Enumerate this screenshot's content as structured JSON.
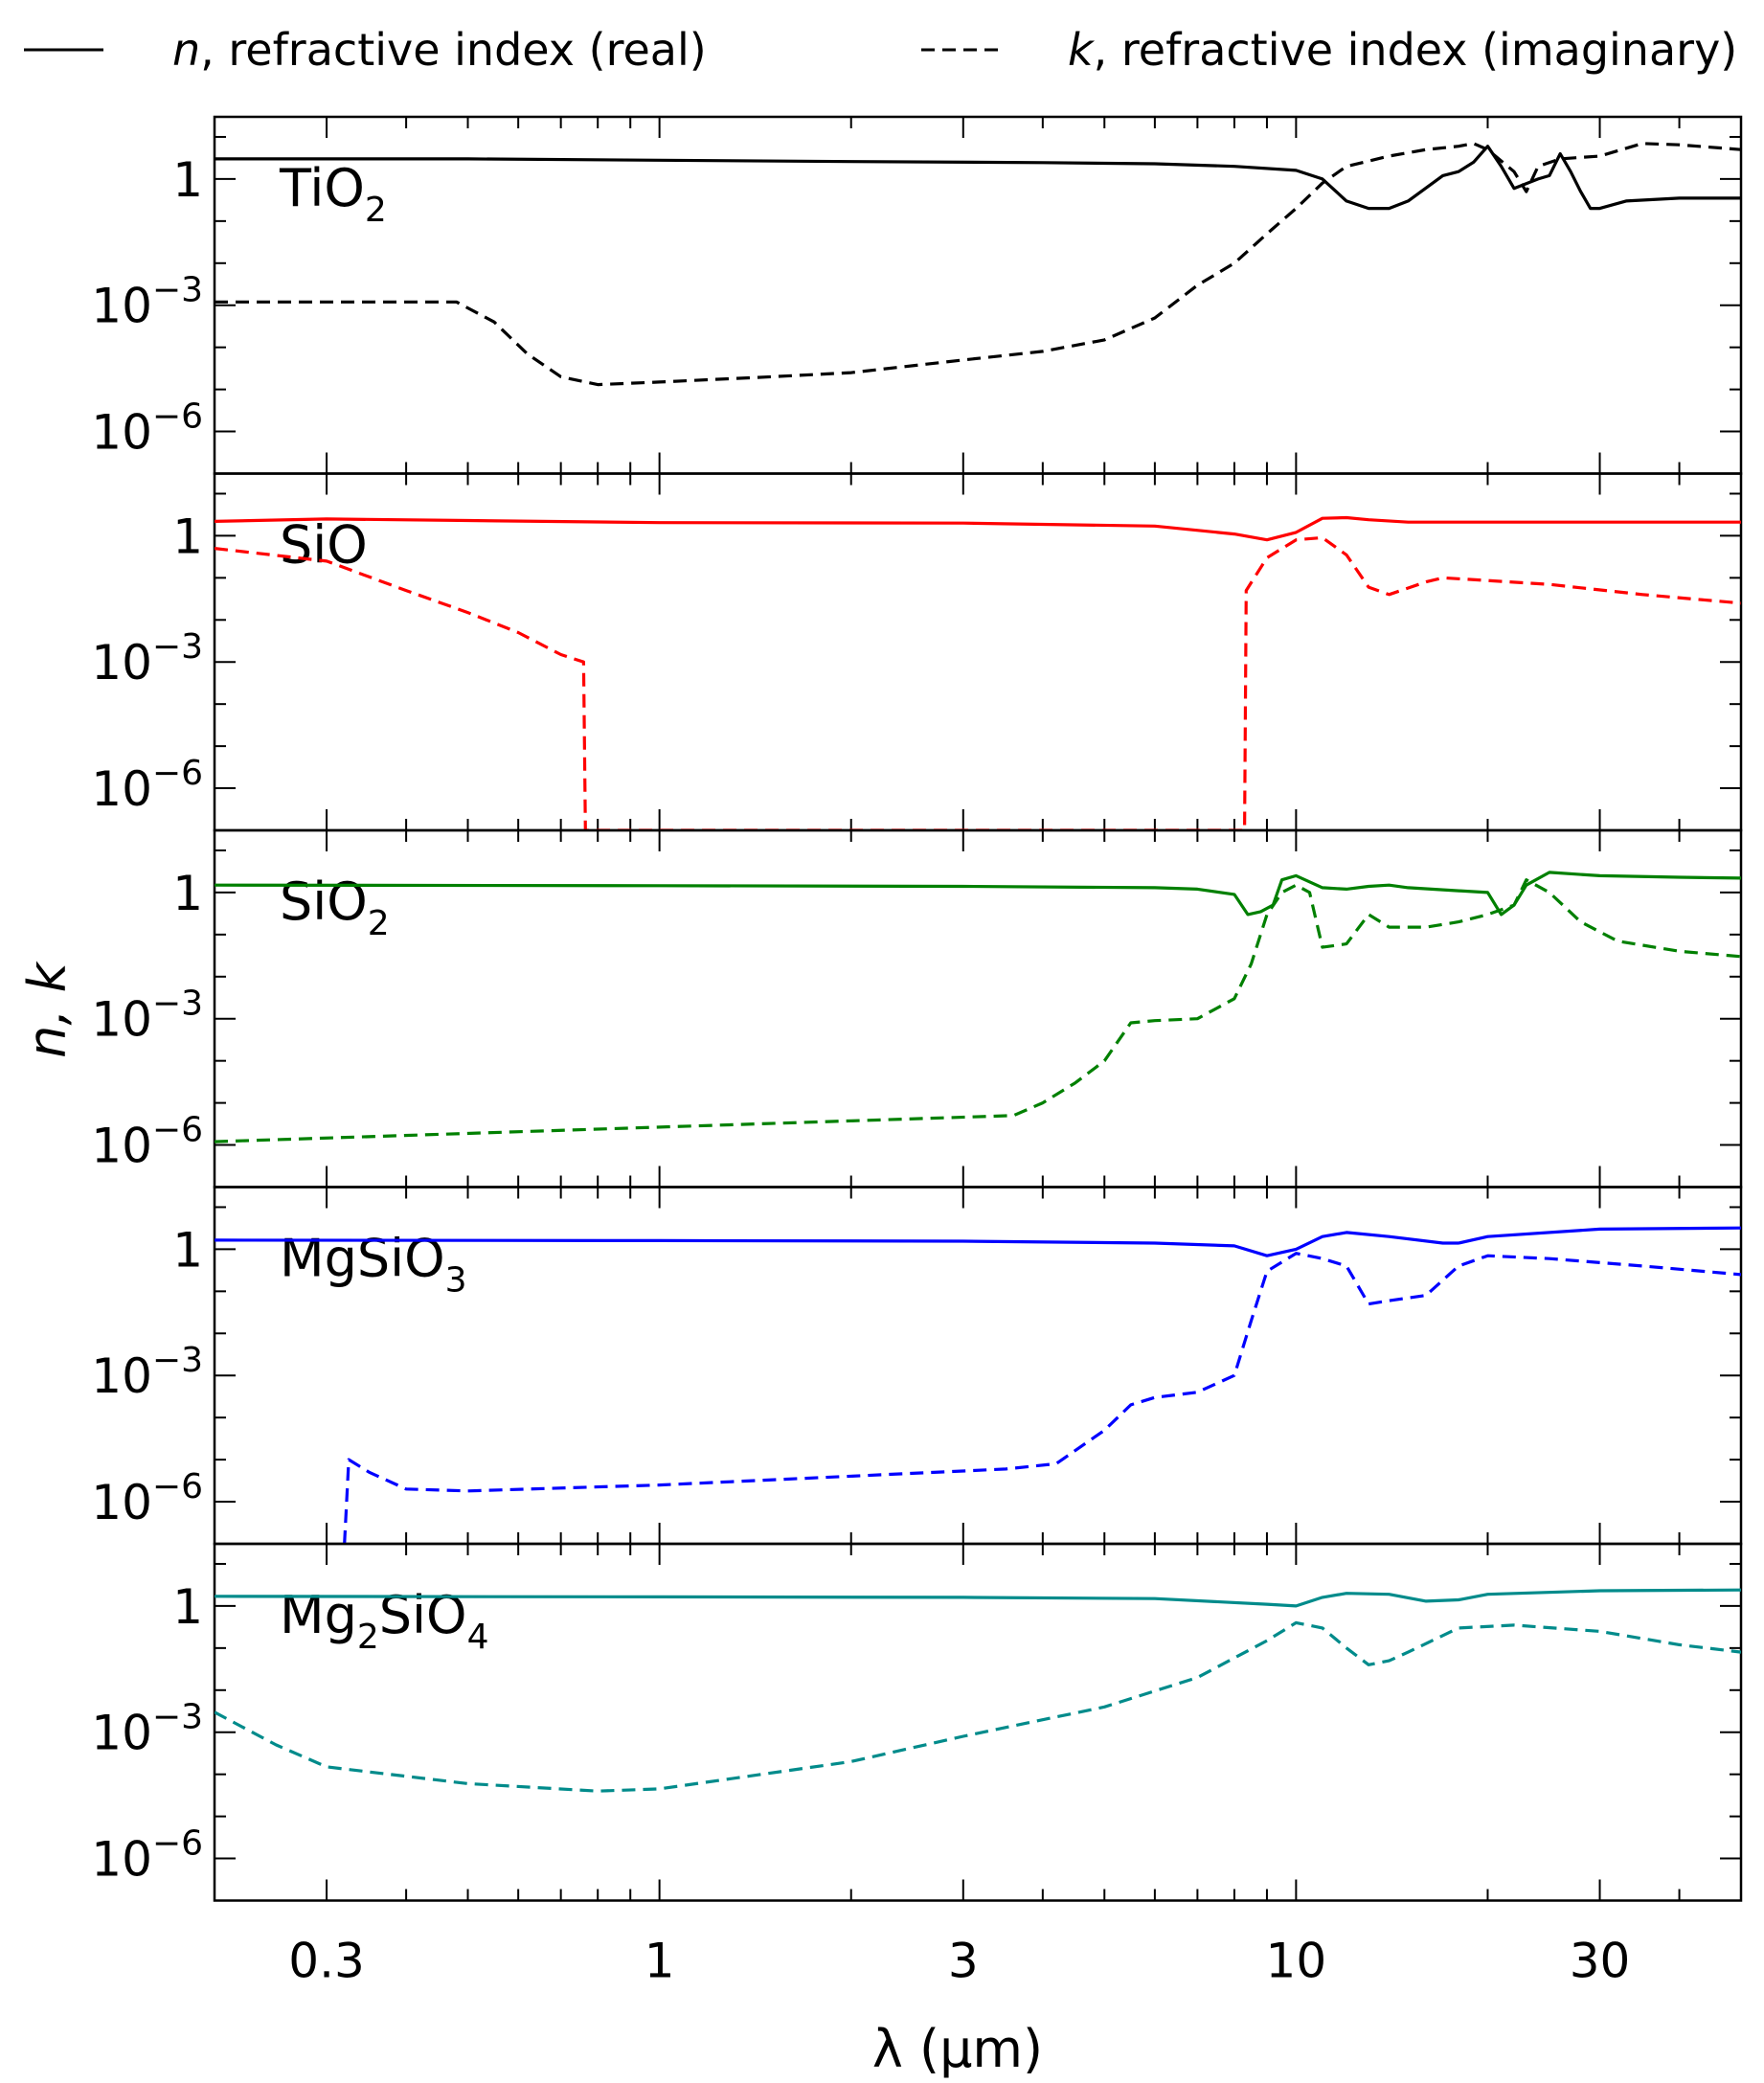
{
  "chart_data": {
    "type": "line",
    "layout": "stacked panels sharing x axis",
    "x_axis": {
      "label": "λ (μm)",
      "scale": "log",
      "range": [
        0.2,
        50
      ],
      "ticks": [
        0.3,
        1,
        3,
        10,
        30
      ],
      "tick_labels": [
        "0.3",
        "1",
        "3",
        "10",
        "30"
      ]
    },
    "y_axis": {
      "label": "n, k",
      "scale": "log",
      "range": [
        1e-07,
        30
      ],
      "ticks": [
        1e-06,
        0.001,
        1
      ],
      "tick_labels_sup": [
        [
          "10",
          "−6"
        ],
        [
          "10",
          "−3"
        ],
        [
          "1",
          ""
        ]
      ]
    },
    "legend": {
      "placement": "top",
      "entries": [
        {
          "key": "n",
          "style": "solid",
          "text_italic": "n",
          "text_rest": ", refractive index (real)"
        },
        {
          "key": "k",
          "style": "dashed",
          "text_italic": "k",
          "text_rest": ", refractive index (imaginary)"
        }
      ]
    },
    "panels": [
      {
        "material": {
          "base": "TiO",
          "subscript": "2"
        },
        "color": "#000000",
        "n": [
          [
            0.2,
            3.0
          ],
          [
            0.5,
            3.0
          ],
          [
            1,
            2.8
          ],
          [
            2,
            2.6
          ],
          [
            4,
            2.45
          ],
          [
            6,
            2.3
          ],
          [
            8,
            2.0
          ],
          [
            10,
            1.6
          ],
          [
            11,
            1.0
          ],
          [
            12,
            0.3
          ],
          [
            13,
            0.2
          ],
          [
            14,
            0.2
          ],
          [
            15,
            0.3
          ],
          [
            17,
            1.2
          ],
          [
            18,
            1.5
          ],
          [
            19,
            2.5
          ],
          [
            20,
            6.0
          ],
          [
            21,
            2.0
          ],
          [
            22,
            0.6
          ],
          [
            24,
            1.0
          ],
          [
            25,
            1.2
          ],
          [
            26,
            4.0
          ],
          [
            27,
            1.5
          ],
          [
            28,
            0.5
          ],
          [
            29,
            0.2
          ],
          [
            30,
            0.2
          ],
          [
            33,
            0.3
          ],
          [
            40,
            0.35
          ],
          [
            50,
            0.35
          ]
        ],
        "k": [
          [
            0.2,
            0.0012
          ],
          [
            0.48,
            0.0012
          ],
          [
            0.55,
            0.0004
          ],
          [
            0.62,
            7e-05
          ],
          [
            0.7,
            2e-05
          ],
          [
            0.8,
            1.3e-05
          ],
          [
            1,
            1.5e-05
          ],
          [
            1.5,
            2e-05
          ],
          [
            2,
            2.5e-05
          ],
          [
            3,
            5e-05
          ],
          [
            4,
            8e-05
          ],
          [
            5,
            0.00015
          ],
          [
            6,
            0.0005
          ],
          [
            7,
            0.003
          ],
          [
            8,
            0.01
          ],
          [
            9,
            0.05
          ],
          [
            10,
            0.2
          ],
          [
            11,
            0.8
          ],
          [
            12,
            2.0
          ],
          [
            14,
            3.5
          ],
          [
            16,
            5.0
          ],
          [
            18,
            6.0
          ],
          [
            19,
            7.0
          ],
          [
            20,
            5.0
          ],
          [
            22,
            1.5
          ],
          [
            23,
            0.5
          ],
          [
            24,
            2.0
          ],
          [
            26,
            3.0
          ],
          [
            30,
            3.5
          ],
          [
            35,
            7.0
          ],
          [
            40,
            6.5
          ],
          [
            50,
            5.0
          ]
        ]
      },
      {
        "material": {
          "base": "SiO",
          "subscript": ""
        },
        "color": "#ff0000",
        "n": [
          [
            0.2,
            2.2
          ],
          [
            0.3,
            2.5
          ],
          [
            0.5,
            2.3
          ],
          [
            1,
            2.05
          ],
          [
            3,
            2.0
          ],
          [
            6,
            1.7
          ],
          [
            8,
            1.1
          ],
          [
            9,
            0.8
          ],
          [
            10,
            1.2
          ],
          [
            11,
            2.6
          ],
          [
            12,
            2.7
          ],
          [
            13,
            2.4
          ],
          [
            15,
            2.1
          ],
          [
            20,
            2.1
          ],
          [
            30,
            2.1
          ],
          [
            50,
            2.1
          ]
        ],
        "k": [
          [
            0.2,
            0.5
          ],
          [
            0.3,
            0.25
          ],
          [
            0.4,
            0.05
          ],
          [
            0.5,
            0.015
          ],
          [
            0.6,
            0.005
          ],
          [
            0.7,
            0.0015
          ],
          [
            0.76,
            0.001
          ],
          [
            0.765,
            1e-07
          ],
          [
            8.3,
            1e-07
          ],
          [
            8.35,
            0.05
          ],
          [
            9,
            0.3
          ],
          [
            10,
            0.8
          ],
          [
            11,
            0.9
          ],
          [
            12,
            0.35
          ],
          [
            13,
            0.06
          ],
          [
            14,
            0.04
          ],
          [
            16,
            0.08
          ],
          [
            17,
            0.1
          ],
          [
            25,
            0.07
          ],
          [
            35,
            0.04
          ],
          [
            50,
            0.025
          ]
        ]
      },
      {
        "material": {
          "base": "SiO",
          "subscript": "2"
        },
        "color": "#008000",
        "n": [
          [
            0.2,
            1.5
          ],
          [
            1,
            1.45
          ],
          [
            3,
            1.4
          ],
          [
            6,
            1.3
          ],
          [
            7,
            1.2
          ],
          [
            8,
            0.9
          ],
          [
            8.4,
            0.3
          ],
          [
            8.8,
            0.35
          ],
          [
            9.2,
            0.5
          ],
          [
            9.5,
            2.0
          ],
          [
            10,
            2.5
          ],
          [
            11,
            1.3
          ],
          [
            12,
            1.2
          ],
          [
            13,
            1.4
          ],
          [
            14,
            1.5
          ],
          [
            15,
            1.3
          ],
          [
            18,
            1.1
          ],
          [
            20,
            1.0
          ],
          [
            21,
            0.3
          ],
          [
            22,
            0.5
          ],
          [
            23,
            1.5
          ],
          [
            25,
            3.0
          ],
          [
            30,
            2.5
          ],
          [
            40,
            2.3
          ],
          [
            50,
            2.2
          ]
        ],
        "k": [
          [
            0.2,
            1.2e-06
          ],
          [
            3.6,
            5e-06
          ],
          [
            4,
            1e-05
          ],
          [
            4.5,
            3e-05
          ],
          [
            5,
            0.0001
          ],
          [
            5.5,
            0.0008
          ],
          [
            6,
            0.0009
          ],
          [
            7,
            0.001
          ],
          [
            8,
            0.003
          ],
          [
            8.5,
            0.02
          ],
          [
            9,
            0.3
          ],
          [
            9.5,
            1.0
          ],
          [
            10,
            1.5
          ],
          [
            10.5,
            1.0
          ],
          [
            11,
            0.05
          ],
          [
            12,
            0.06
          ],
          [
            13,
            0.3
          ],
          [
            14,
            0.15
          ],
          [
            16,
            0.15
          ],
          [
            18,
            0.2
          ],
          [
            20,
            0.3
          ],
          [
            22,
            0.5
          ],
          [
            23,
            2.0
          ],
          [
            25,
            1.0
          ],
          [
            28,
            0.2
          ],
          [
            32,
            0.07
          ],
          [
            40,
            0.04
          ],
          [
            50,
            0.03
          ]
        ]
      },
      {
        "material": {
          "base": "MgSiO",
          "subscript": "3"
        },
        "color": "#0000ff",
        "n": [
          [
            0.2,
            1.65
          ],
          [
            1,
            1.6
          ],
          [
            3,
            1.55
          ],
          [
            6,
            1.4
          ],
          [
            8,
            1.2
          ],
          [
            9,
            0.7
          ],
          [
            10,
            1.0
          ],
          [
            11,
            2.0
          ],
          [
            12,
            2.5
          ],
          [
            14,
            2.0
          ],
          [
            17,
            1.4
          ],
          [
            18,
            1.4
          ],
          [
            20,
            2.0
          ],
          [
            30,
            3.0
          ],
          [
            50,
            3.2
          ]
        ],
        "k": [
          [
            0.32,
            1e-07
          ],
          [
            0.325,
            1e-05
          ],
          [
            0.35,
            5e-06
          ],
          [
            0.4,
            2e-06
          ],
          [
            0.5,
            1.8e-06
          ],
          [
            1,
            2.5e-06
          ],
          [
            3.5,
            6e-06
          ],
          [
            4.2,
            8e-06
          ],
          [
            5,
            5e-05
          ],
          [
            5.5,
            0.0002
          ],
          [
            6,
            0.0003
          ],
          [
            7,
            0.0004
          ],
          [
            8,
            0.001
          ],
          [
            8.5,
            0.02
          ],
          [
            9,
            0.3
          ],
          [
            10,
            0.8
          ],
          [
            11,
            0.6
          ],
          [
            12,
            0.4
          ],
          [
            13,
            0.05
          ],
          [
            14,
            0.06
          ],
          [
            16,
            0.08
          ],
          [
            18,
            0.4
          ],
          [
            20,
            0.7
          ],
          [
            25,
            0.6
          ],
          [
            35,
            0.4
          ],
          [
            50,
            0.25
          ]
        ]
      },
      {
        "material": {
          "base": "Mg",
          "subscript": "2",
          "base2": "SiO",
          "subscript2": "4"
        },
        "color": "#008b8b",
        "n": [
          [
            0.2,
            1.7
          ],
          [
            1,
            1.65
          ],
          [
            3,
            1.6
          ],
          [
            6,
            1.5
          ],
          [
            9,
            1.1
          ],
          [
            10,
            1.0
          ],
          [
            11,
            1.6
          ],
          [
            12,
            2.0
          ],
          [
            14,
            1.9
          ],
          [
            16,
            1.3
          ],
          [
            18,
            1.4
          ],
          [
            20,
            1.9
          ],
          [
            30,
            2.3
          ],
          [
            50,
            2.4
          ]
        ],
        "k": [
          [
            0.2,
            0.003
          ],
          [
            0.25,
            0.0005
          ],
          [
            0.3,
            0.00015
          ],
          [
            0.5,
            6e-05
          ],
          [
            0.8,
            4e-05
          ],
          [
            1,
            4.5e-05
          ],
          [
            2,
            0.0002
          ],
          [
            3,
            0.0008
          ],
          [
            5,
            0.004
          ],
          [
            7,
            0.02
          ],
          [
            9,
            0.15
          ],
          [
            10,
            0.4
          ],
          [
            11,
            0.3
          ],
          [
            12,
            0.1
          ],
          [
            13,
            0.04
          ],
          [
            14,
            0.05
          ],
          [
            15,
            0.08
          ],
          [
            18,
            0.3
          ],
          [
            22,
            0.35
          ],
          [
            30,
            0.25
          ],
          [
            40,
            0.12
          ],
          [
            50,
            0.08
          ]
        ]
      }
    ]
  }
}
